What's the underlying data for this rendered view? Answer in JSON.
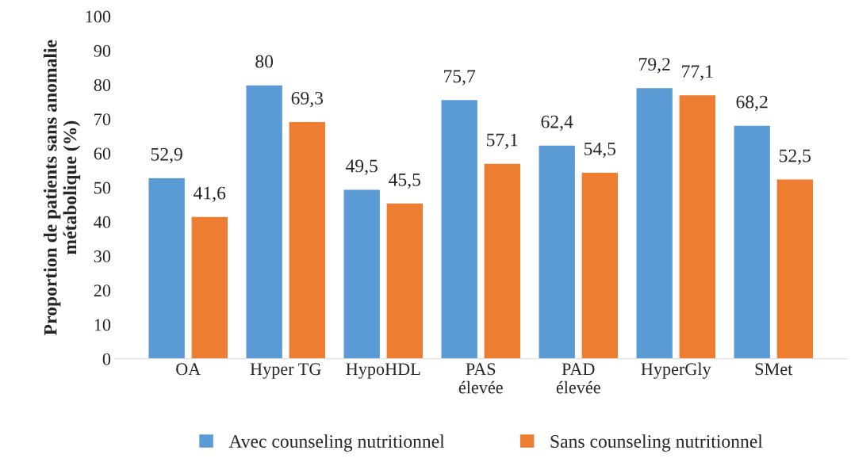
{
  "chart_data": {
    "type": "bar",
    "ylabel": "Proportion de patients sans anomalie\nmétabolique (%)",
    "categories": [
      "OA",
      "Hyper TG",
      "HypoHDL",
      "PAS\nélevée",
      "PAD\nélevée",
      "HyperGly",
      "SMet"
    ],
    "series": [
      {
        "name": "Avec counseling nutritionnel",
        "color": "#5b9bd5",
        "values": [
          52.9,
          80,
          49.5,
          75.7,
          62.4,
          79.2,
          68.2
        ],
        "value_labels": [
          "52,9",
          "80",
          "49,5",
          "75,7",
          "62,4",
          "79,2",
          "68,2"
        ]
      },
      {
        "name": "Sans counseling nutritionnel",
        "color": "#ed7d31",
        "values": [
          41.6,
          69.3,
          45.5,
          57.1,
          54.5,
          77.1,
          52.5
        ],
        "value_labels": [
          "41,6",
          "69,3",
          "45,5",
          "57,1",
          "54,5",
          "77,1",
          "52,5"
        ]
      }
    ],
    "ylim": [
      0,
      100
    ],
    "yticks": [
      0,
      10,
      20,
      30,
      40,
      50,
      60,
      70,
      80,
      90,
      100
    ],
    "grid": false,
    "legend": "bottom"
  }
}
